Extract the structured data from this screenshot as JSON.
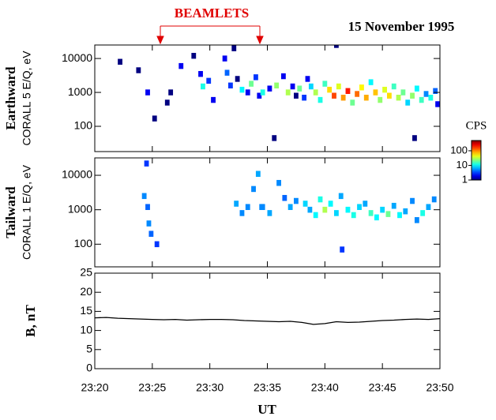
{
  "chart_data": [
    {
      "type": "spectrogram",
      "title": "15 November 1995",
      "annotation": "BEAMLETS",
      "ylabel": "Earthward",
      "ylabel_sub": "CORALL 5 E/Q, eV",
      "yscale": "log",
      "xlim": [
        1400,
        1430
      ],
      "ylim": [
        18,
        25000
      ],
      "yticks": [
        100,
        1000,
        10000
      ],
      "colorbar": {
        "label": "CPS",
        "clim": [
          1,
          500
        ],
        "ticks": [
          1,
          10,
          100
        ]
      },
      "cells": [
        [
          1402.2,
          8000,
          1
        ],
        [
          1403.8,
          4500,
          1
        ],
        [
          1404.6,
          1000,
          2
        ],
        [
          1405.2,
          170,
          1
        ],
        [
          1406.3,
          500,
          1
        ],
        [
          1406.6,
          1000,
          1
        ],
        [
          1407.5,
          6000,
          2
        ],
        [
          1408.6,
          12000,
          1
        ],
        [
          1409.2,
          3500,
          2
        ],
        [
          1409.4,
          1500,
          12
        ],
        [
          1409.9,
          2200,
          3
        ],
        [
          1410.3,
          600,
          2
        ],
        [
          1411.3,
          10000,
          2
        ],
        [
          1411.5,
          3800,
          4
        ],
        [
          1411.8,
          1600,
          3
        ],
        [
          1412.1,
          20000,
          1
        ],
        [
          1412.4,
          2500,
          1
        ],
        [
          1412.8,
          1200,
          10
        ],
        [
          1413.3,
          1000,
          2
        ],
        [
          1413.6,
          1800,
          20
        ],
        [
          1414.0,
          2800,
          3
        ],
        [
          1414.3,
          800,
          2
        ],
        [
          1414.6,
          1000,
          12
        ],
        [
          1415.2,
          1300,
          2
        ],
        [
          1415.6,
          45,
          1
        ],
        [
          1415.8,
          1600,
          25
        ],
        [
          1416.4,
          3000,
          2
        ],
        [
          1416.8,
          1000,
          30
        ],
        [
          1417.2,
          1500,
          2
        ],
        [
          1417.5,
          800,
          1
        ],
        [
          1417.8,
          1300,
          20
        ],
        [
          1418.2,
          700,
          3
        ],
        [
          1418.5,
          2500,
          2
        ],
        [
          1418.8,
          1500,
          8
        ],
        [
          1419.2,
          1000,
          30
        ],
        [
          1419.6,
          600,
          12
        ],
        [
          1420.0,
          1800,
          15
        ],
        [
          1420.4,
          1200,
          60
        ],
        [
          1420.8,
          800,
          150
        ],
        [
          1421.0,
          25000,
          1
        ],
        [
          1421.2,
          1500,
          40
        ],
        [
          1421.6,
          700,
          90
        ],
        [
          1422.0,
          1100,
          200
        ],
        [
          1422.4,
          500,
          20
        ],
        [
          1422.8,
          900,
          120
        ],
        [
          1423.2,
          1400,
          50
        ],
        [
          1423.6,
          700,
          80
        ],
        [
          1424.0,
          2000,
          10
        ],
        [
          1424.4,
          1000,
          70
        ],
        [
          1424.8,
          600,
          25
        ],
        [
          1425.2,
          1200,
          40
        ],
        [
          1425.6,
          800,
          60
        ],
        [
          1426.0,
          1500,
          15
        ],
        [
          1426.4,
          700,
          30
        ],
        [
          1426.8,
          1000,
          20
        ],
        [
          1427.2,
          500,
          8
        ],
        [
          1427.6,
          800,
          25
        ],
        [
          1427.8,
          45,
          1
        ],
        [
          1428.0,
          1300,
          10
        ],
        [
          1428.4,
          600,
          15
        ],
        [
          1428.8,
          900,
          5
        ],
        [
          1429.2,
          700,
          12
        ],
        [
          1429.6,
          1100,
          4
        ],
        [
          1429.8,
          450,
          2
        ]
      ]
    },
    {
      "type": "spectrogram",
      "ylabel": "Tailward",
      "ylabel_sub": "CORALL 1 E/Q, eV",
      "yscale": "log",
      "xlim": [
        1400,
        1430
      ],
      "ylim": [
        22,
        32000
      ],
      "yticks": [
        100,
        1000,
        10000
      ],
      "cells": [
        [
          1404.5,
          22000,
          3
        ],
        [
          1404.3,
          2500,
          5
        ],
        [
          1404.6,
          1200,
          4
        ],
        [
          1404.7,
          400,
          5
        ],
        [
          1404.9,
          200,
          4
        ],
        [
          1405.4,
          100,
          3
        ],
        [
          1412.3,
          1500,
          6
        ],
        [
          1412.8,
          800,
          5
        ],
        [
          1413.3,
          1200,
          5
        ],
        [
          1413.8,
          4000,
          5
        ],
        [
          1414.2,
          11000,
          6
        ],
        [
          1414.5,
          1200,
          5
        ],
        [
          1414.6,
          1200,
          5
        ],
        [
          1415.2,
          800,
          6
        ],
        [
          1416.0,
          6000,
          5
        ],
        [
          1416.5,
          2200,
          4
        ],
        [
          1417.0,
          1200,
          6
        ],
        [
          1417.5,
          1800,
          5
        ],
        [
          1418.3,
          1500,
          8
        ],
        [
          1418.7,
          1000,
          6
        ],
        [
          1419.2,
          700,
          10
        ],
        [
          1419.6,
          2000,
          12
        ],
        [
          1420.0,
          1000,
          30
        ],
        [
          1420.5,
          1500,
          10
        ],
        [
          1421.0,
          800,
          8
        ],
        [
          1421.4,
          2500,
          6
        ],
        [
          1421.5,
          70,
          3
        ],
        [
          1422.0,
          1000,
          10
        ],
        [
          1422.5,
          700,
          12
        ],
        [
          1423.0,
          1200,
          8
        ],
        [
          1423.5,
          1500,
          6
        ],
        [
          1424.0,
          800,
          15
        ],
        [
          1424.5,
          600,
          10
        ],
        [
          1425.0,
          1000,
          8
        ],
        [
          1425.5,
          750,
          20
        ],
        [
          1426.0,
          1300,
          6
        ],
        [
          1426.5,
          700,
          10
        ],
        [
          1427.0,
          900,
          6
        ],
        [
          1427.6,
          1800,
          5
        ],
        [
          1428.0,
          500,
          5
        ],
        [
          1428.5,
          800,
          12
        ],
        [
          1429.0,
          1200,
          6
        ],
        [
          1429.5,
          2000,
          5
        ]
      ]
    },
    {
      "type": "line",
      "ylabel": "B, nT",
      "xlabel": "UT",
      "color": "#000000",
      "xlim": [
        1400,
        1430
      ],
      "ylim": [
        0,
        25
      ],
      "yticks": [
        0,
        5,
        10,
        15,
        20,
        25
      ],
      "xticks": [
        {
          "value": 1400,
          "label": "23:20"
        },
        {
          "value": 1405,
          "label": "23:25"
        },
        {
          "value": 1410,
          "label": "23:30"
        },
        {
          "value": 1415,
          "label": "23:35"
        },
        {
          "value": 1420,
          "label": "23:40"
        },
        {
          "value": 1425,
          "label": "23:45"
        },
        {
          "value": 1430,
          "label": "23:50"
        }
      ],
      "x": [
        1400,
        1401,
        1402,
        1403,
        1404,
        1405,
        1406,
        1407,
        1408,
        1409,
        1410,
        1411,
        1412,
        1413,
        1414,
        1415,
        1416,
        1417,
        1418,
        1419,
        1420,
        1421,
        1422,
        1423,
        1424,
        1425,
        1426,
        1427,
        1428,
        1429,
        1430
      ],
      "values": [
        13.3,
        13.4,
        13.2,
        13.1,
        13.0,
        12.9,
        12.8,
        12.9,
        12.7,
        12.8,
        12.9,
        12.9,
        12.8,
        12.6,
        12.5,
        12.4,
        12.3,
        12.4,
        12.1,
        11.6,
        11.8,
        12.3,
        12.1,
        12.2,
        12.4,
        12.6,
        12.7,
        12.9,
        13.0,
        12.9,
        13.1
      ]
    }
  ]
}
